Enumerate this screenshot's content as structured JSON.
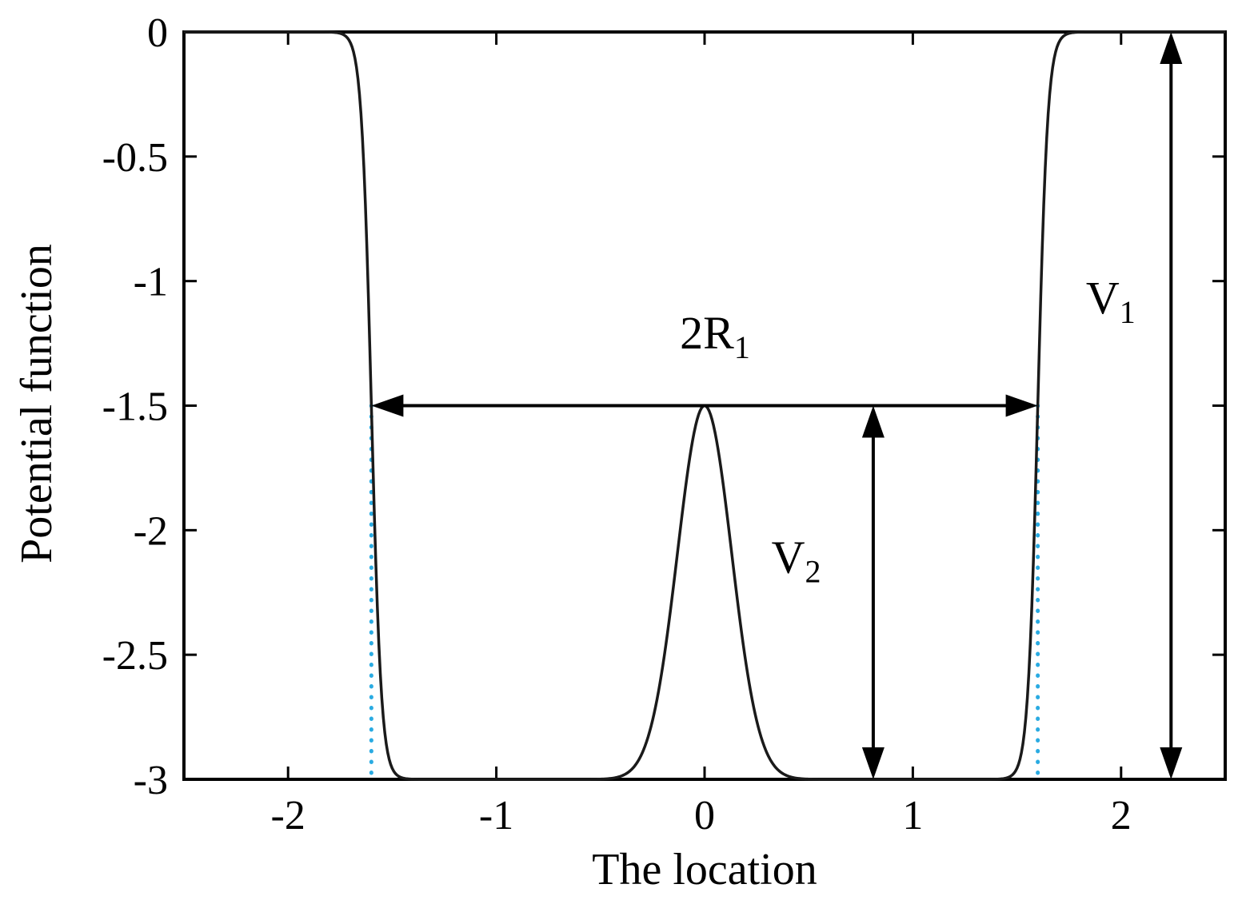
{
  "chart_data": {
    "type": "line",
    "title": "",
    "xlabel": "The location",
    "ylabel": "Potential function",
    "xlim": [
      -2.5,
      2.5
    ],
    "ylim": [
      -3,
      0
    ],
    "xticks": [
      -2,
      -1,
      0,
      1,
      2
    ],
    "yticks": [
      0,
      -0.5,
      -1,
      -1.5,
      -2,
      -2.5,
      -3
    ],
    "grid": "off",
    "legend": "none",
    "series": [
      {
        "name": "potential-well-curve",
        "color": "#1a1a1a",
        "model": "square well of depth V1 with central gaussian barrier of height V2",
        "floor": -3,
        "outside_level": 0,
        "well_half_width": 1.6,
        "wall_steepness": 42,
        "barrier_peak_value": -1.5,
        "barrier_height": 1.5,
        "barrier_center": 0,
        "barrier_sigma": 0.13,
        "samples": 700
      }
    ],
    "guides": [
      {
        "id": "left-well-edge",
        "x": -1.6,
        "y1": -1.5,
        "y2": -3,
        "style": "dotted",
        "color": "#2aabe2"
      },
      {
        "id": "right-well-edge",
        "x": 1.6,
        "y1": -1.5,
        "y2": -3,
        "style": "dotted",
        "color": "#2aabe2"
      }
    ],
    "annotations": [
      {
        "id": "2R1",
        "text": "2R",
        "sub": "1",
        "type": "h-arrow",
        "y": -1.5,
        "x1": -1.6,
        "x2": 1.6,
        "label_x": 0.05,
        "label_y": -1.27
      },
      {
        "id": "V2",
        "text": "V",
        "sub": "2",
        "type": "v-arrow",
        "x": 0.81,
        "y1": -1.5,
        "y2": -3,
        "label_x": 0.44,
        "label_y": -2.17
      },
      {
        "id": "V1",
        "text": "V",
        "sub": "1",
        "type": "v-arrow",
        "x": 2.24,
        "y1": 0,
        "y2": -3,
        "label_x": 1.95,
        "label_y": -1.13
      }
    ],
    "axis_color": "#000000",
    "background": "#ffffff"
  }
}
